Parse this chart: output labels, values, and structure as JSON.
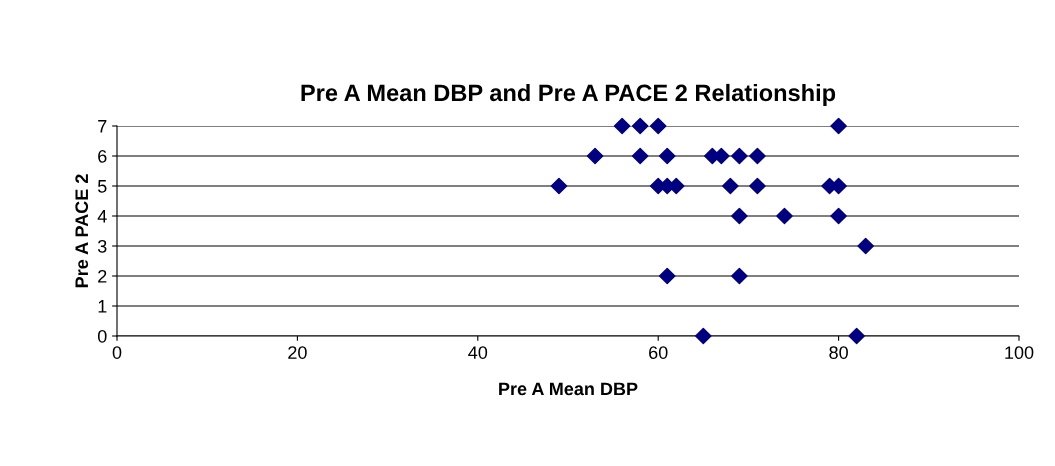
{
  "chart_data": {
    "type": "scatter",
    "title": "Pre A Mean DBP and Pre A PACE 2 Relationship",
    "xlabel": "Pre A Mean DBP",
    "ylabel": "Pre A PACE 2",
    "x": [
      56,
      58,
      60,
      80,
      53,
      58,
      61,
      66,
      67,
      69,
      71,
      49,
      60,
      61,
      62,
      68,
      71,
      79,
      80,
      69,
      74,
      80,
      83,
      61,
      69,
      65,
      82
    ],
    "values": [
      7,
      7,
      7,
      7,
      6,
      6,
      6,
      6,
      6,
      6,
      6,
      5,
      5,
      5,
      5,
      5,
      5,
      5,
      5,
      4,
      4,
      4,
      3,
      2,
      2,
      0,
      0
    ],
    "color": "#000080",
    "marker": "diamond",
    "xlim": [
      0,
      100
    ],
    "xticks": [
      0,
      20,
      40,
      60,
      80,
      100
    ],
    "ylim": [
      0,
      7
    ],
    "yticks": [
      0,
      1,
      2,
      3,
      4,
      5,
      6,
      7
    ],
    "grid": "y",
    "legend": false
  }
}
